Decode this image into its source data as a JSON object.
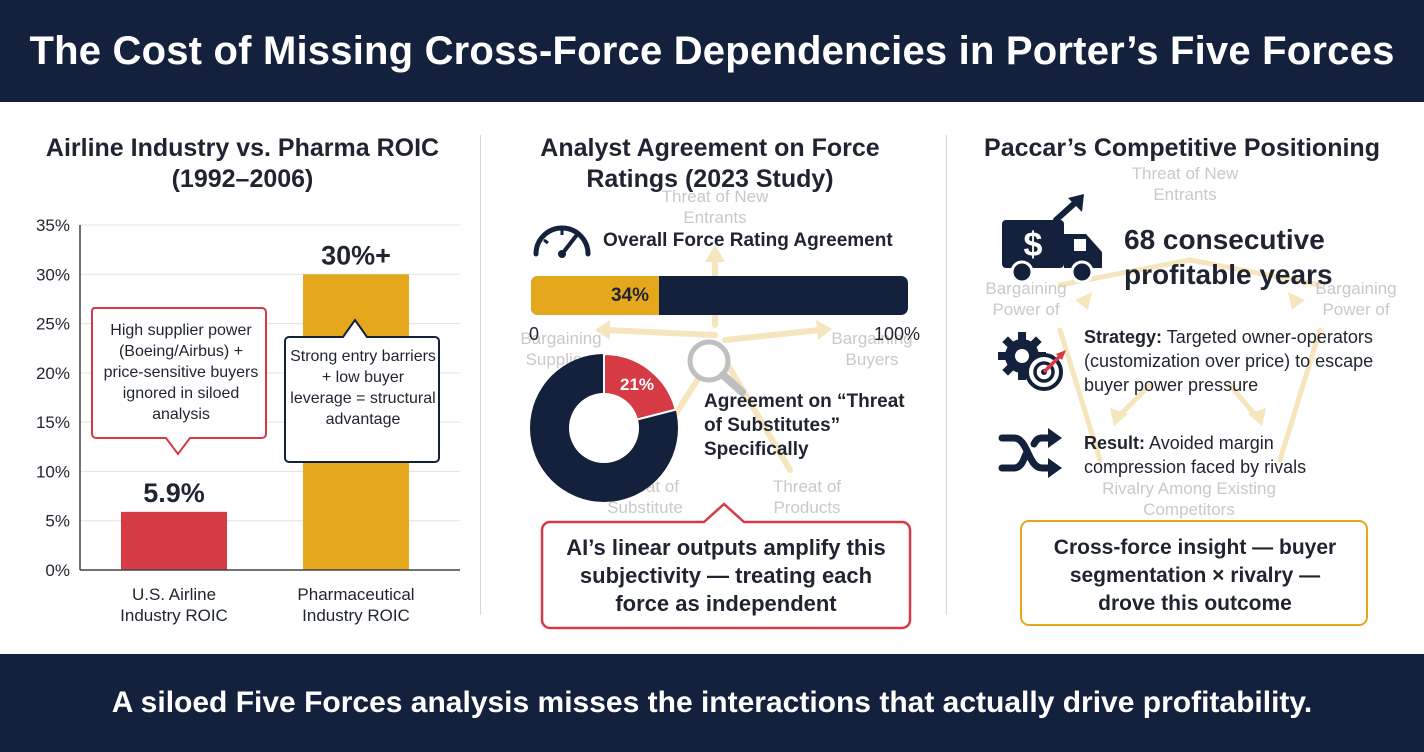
{
  "header": {
    "title": "The Cost of Missing Cross-Force Dependencies in Porter’s Five Forces"
  },
  "footer": {
    "text": "A siloed Five Forces analysis misses the interactions that actually drive profitability."
  },
  "panel1": {
    "title": "Airline Industry vs. Pharma ROIC (1992–2006)",
    "callout_airline": "High supplier power (Boeing/Airbus) + price-sensitive buyers ignored in siloed analysis",
    "callout_pharma": "Strong entry barriers + low buyer leverage = structural advantage"
  },
  "chart_data": {
    "type": "bar",
    "title": "Airline Industry vs. Pharma ROIC (1992–2006)",
    "categories": [
      "U.S. Airline Industry ROIC",
      "Pharmaceutical Industry ROIC"
    ],
    "values": [
      5.9,
      30
    ],
    "value_labels": [
      "5.9%",
      "30%+"
    ],
    "yticks": [
      "0%",
      "5%",
      "10%",
      "15%",
      "20%",
      "25%",
      "30%",
      "35%"
    ],
    "ylim": [
      0,
      35
    ],
    "colors": [
      "#d63a45",
      "#e5a81c"
    ],
    "grid": true
  },
  "panel2": {
    "title": "Analyst Agreement on Force Ratings (2023 Study)",
    "bar_label": "Overall Force Rating Agreement",
    "bar_value": 34,
    "bar_value_label": "34%",
    "bar_min_label": "0",
    "bar_max_label": "100%",
    "donut_value": 21,
    "donut_value_label": "21%",
    "donut_label": "Agreement on “Threat of Substitutes” Specifically",
    "callout": "AI’s linear outputs amplify this subjectivity — treating each force as independent",
    "bg_labels": {
      "top": "Threat of New Entrants",
      "left": "Bargaining Suppliers",
      "right": "Bargaining Buyers",
      "bottom_left": "Threat of Substitute",
      "bottom_right": "Threat of Products"
    },
    "colors": {
      "navy": "#14213d",
      "gold": "#e5a81c",
      "red": "#d63a45"
    }
  },
  "panel3": {
    "title": "Paccar’s Competitive Positioning",
    "headline": "68 consecutive profitable years",
    "strategy_label": "Strategy:",
    "strategy_text": "Targeted owner-operators (customization over price) to escape buyer power pressure",
    "result_label": "Result:",
    "result_text": "Avoided margin compression faced by rivals",
    "callout": "Cross-force insight — buyer segmentation × rivalry — drove this outcome",
    "bg_labels": {
      "top": "Threat of New Entrants",
      "left": "Bargaining Power of",
      "right": "Bargaining Power of",
      "bottom": "Rivalry Among Existing Competitors"
    },
    "icons": [
      "truck-dollar-icon",
      "gear-target-icon",
      "shuffle-icon"
    ]
  }
}
